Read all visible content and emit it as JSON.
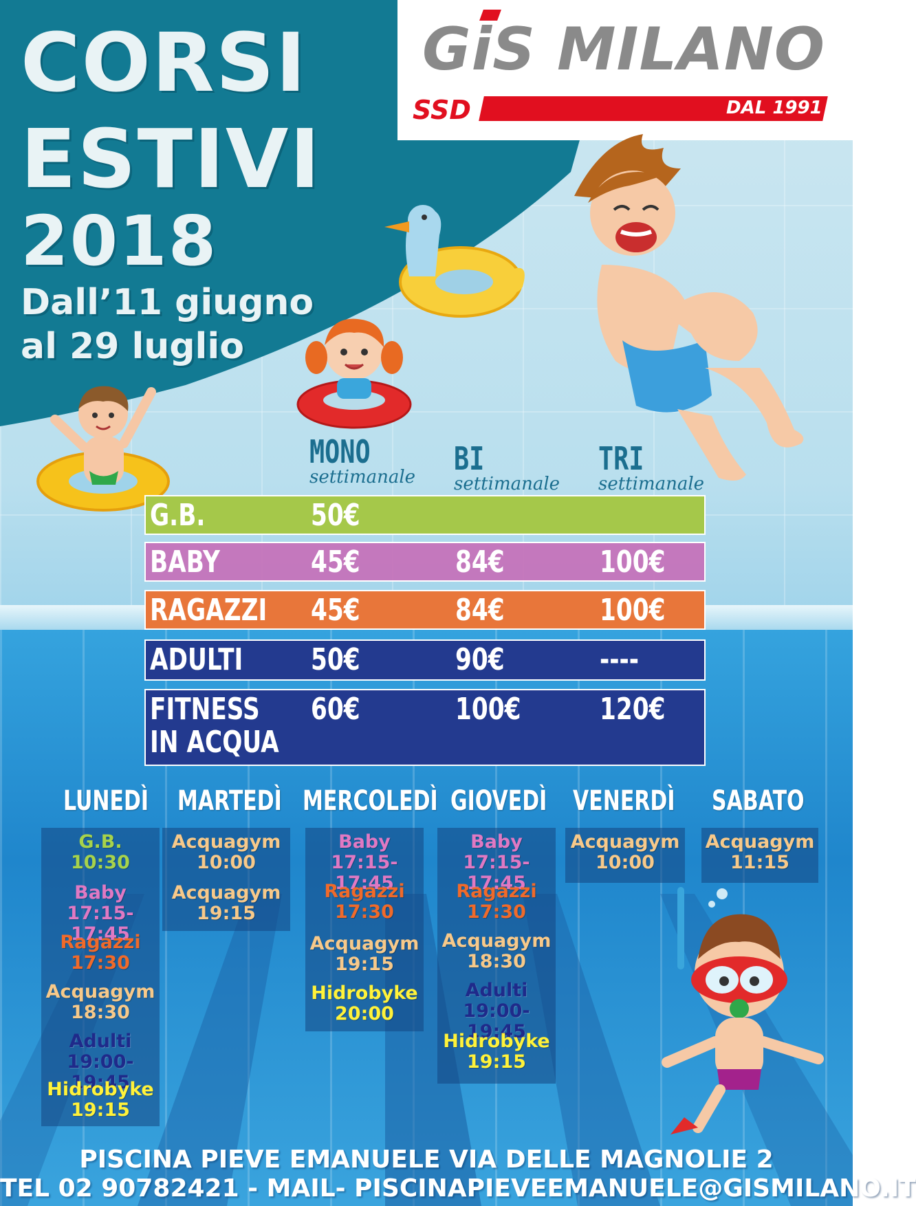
{
  "title": {
    "line1": "CORSI",
    "line2": "ESTIVI",
    "year": "2018",
    "dates_line1": "Dall’11 giugno",
    "dates_line2": "al 29 luglio"
  },
  "logo": {
    "name": "GiS MILANO",
    "ssd": "SSD",
    "since": "DAL 1991",
    "accent_color": "#e10f1f"
  },
  "price_table": {
    "columns": [
      {
        "label": "MONO",
        "sub": "settimanale"
      },
      {
        "label": "BI",
        "sub": "settimanale"
      },
      {
        "label": "TRI",
        "sub": "settimanale"
      }
    ],
    "rows": [
      {
        "name": "G.B.",
        "mono": "50€",
        "bi": "",
        "tri": "",
        "color": "#a5c84a"
      },
      {
        "name": "BABY",
        "mono": "45€",
        "bi": "84€",
        "tri": "100€",
        "color": "#c670b8"
      },
      {
        "name": "RAGAZZI",
        "mono": "45€",
        "bi": "84€",
        "tri": "100€",
        "color": "#e8763a"
      },
      {
        "name": "ADULTI",
        "mono": "50€",
        "bi": "90€",
        "tri": "----",
        "color": "#233a8f"
      },
      {
        "name": "FITNESS",
        "name2": "IN ACQUA",
        "mono": "60€",
        "bi": "100€",
        "tri": "120€",
        "color": "#233a8f"
      }
    ]
  },
  "schedule": {
    "days": [
      "LUNEDÌ",
      "MARTEDÌ",
      "MERCOLEDÌ",
      "GIOVEDÌ",
      "VENERDÌ",
      "SABATO"
    ],
    "lunedi": [
      {
        "name": "G.B.",
        "time": "10:30"
      },
      {
        "name": "Baby",
        "time": "17:15-17:45"
      },
      {
        "name": "Ragazzi",
        "time": "17:30"
      },
      {
        "name": "Acquagym",
        "time": "18:30"
      },
      {
        "name": "Adulti",
        "time": "19:00-19:45"
      },
      {
        "name": "Hidrobyke",
        "time": "19:15"
      }
    ],
    "martedi": [
      {
        "name": "Acquagym",
        "time": "10:00"
      },
      {
        "name": "Acquagym",
        "time": "19:15"
      }
    ],
    "mercoledi": [
      {
        "name": "Baby",
        "time": "17:15-17:45"
      },
      {
        "name": "Ragazzi",
        "time": "17:30"
      },
      {
        "name": "Acquagym",
        "time": "19:15"
      },
      {
        "name": "Hidrobyke",
        "time": "20:00"
      }
    ],
    "giovedi": [
      {
        "name": "Baby",
        "time": "17:15-17:45"
      },
      {
        "name": "Ragazzi",
        "time": "17:30"
      },
      {
        "name": "Acquagym",
        "time": "18:30"
      },
      {
        "name": "Adulti",
        "time": "19:00-19:45"
      },
      {
        "name": "Hidrobyke",
        "time": "19:15"
      }
    ],
    "venerdi": [
      {
        "name": "Acquagym",
        "time": "10:00"
      }
    ],
    "sabato": [
      {
        "name": "Acquagym",
        "time": "11:15"
      }
    ]
  },
  "footer": {
    "address": "PISCINA PIEVE EMANUELE VIA DELLE MAGNOLIE 2",
    "contact": "TEL 02 90782421 - MAIL- PISCINAPIEVEEMANUELE@GISMILANO.IT"
  },
  "illustrations": [
    "swimming-boy-icon",
    "swimming-girl-icon",
    "duck-float-icon",
    "jumping-boy-icon",
    "snorkel-boy-icon"
  ]
}
